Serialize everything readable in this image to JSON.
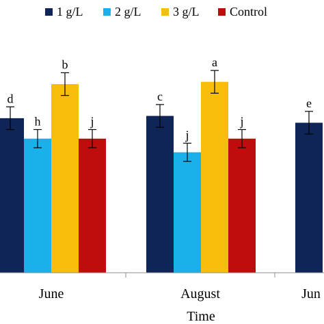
{
  "chart_data": {
    "type": "bar",
    "categories": [
      "June",
      "August",
      "Jun"
    ],
    "series": [
      {
        "name": "1 g/L",
        "color": "#0f2557",
        "values": [
          68,
          69,
          66
        ],
        "errors": [
          5,
          5,
          5
        ],
        "labels": [
          "d",
          "c",
          "e"
        ]
      },
      {
        "name": "2 g/L",
        "color": "#1ab1ea",
        "values": [
          59,
          53,
          null
        ],
        "errors": [
          4,
          4,
          null
        ],
        "labels": [
          "h",
          "j",
          ""
        ]
      },
      {
        "name": "3 g/L",
        "color": "#f9bd0b",
        "values": [
          83,
          84,
          null
        ],
        "errors": [
          5,
          5,
          null
        ],
        "labels": [
          "b",
          "a",
          ""
        ]
      },
      {
        "name": "Control",
        "color": "#bf0d0d",
        "values": [
          59,
          59,
          null
        ],
        "errors": [
          4,
          4,
          null
        ],
        "labels": [
          "j",
          "j",
          ""
        ]
      }
    ],
    "xlabel": "Time",
    "ylabel": "",
    "title": "",
    "ylim": [
      0,
      120
    ],
    "grid": false,
    "legend_position": "top"
  }
}
